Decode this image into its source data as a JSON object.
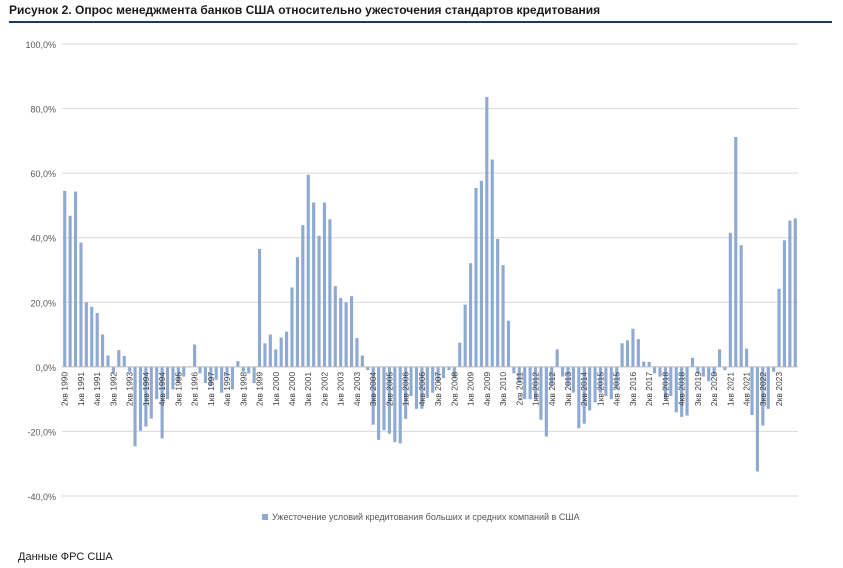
{
  "figure": {
    "title": "Рисунок 2. Опрос менеджмента банков США относительно ужесточения стандартов кредитования",
    "source": "Данные ФРС США"
  },
  "chart_data": {
    "type": "bar",
    "title": "",
    "xlabel": "",
    "ylabel": "",
    "ylim": [
      -40,
      100
    ],
    "y_ticks": [
      -40,
      -20,
      0,
      20,
      40,
      60,
      80,
      100
    ],
    "y_tick_labels": [
      "-40,0%",
      "-20,0%",
      "0,0%",
      "20,0%",
      "40,0%",
      "60,0%",
      "80,0%",
      "100,0%"
    ],
    "grid": true,
    "legend_position": "bottom",
    "bar_color": "#8eaad3",
    "series": [
      {
        "name": "Ужесточение условий кредитования больших и средних компаний в США",
        "values": [
          54.5,
          46.8,
          54.3,
          38.5,
          20.0,
          18.6,
          16.7,
          10.0,
          3.5,
          -2.0,
          5.2,
          3.4,
          -1.5,
          -24.6,
          -19.8,
          -18.5,
          -16.0,
          -10.0,
          -22.2,
          -10.0,
          -7.0,
          -5.0,
          -3.0,
          0.0,
          6.9,
          -2.0,
          -5.0,
          -6.0,
          -4.0,
          -8.0,
          -3.0,
          -7.0,
          1.8,
          -1.5,
          -2.0,
          -5.0,
          36.5,
          7.3,
          10.0,
          5.4,
          9.1,
          10.9,
          24.6,
          34.0,
          43.9,
          59.5,
          50.9,
          40.6,
          50.9,
          45.7,
          25.0,
          21.3,
          20.0,
          21.9,
          8.9,
          3.5,
          -1.0,
          -17.9,
          -22.6,
          -19.6,
          -20.7,
          -23.3,
          -23.7,
          -16.1,
          -9.0,
          -13.0,
          -13.0,
          -9.6,
          -8.0,
          -5.0,
          -3.5,
          -1.0,
          -3.6,
          7.5,
          19.3,
          32.1,
          55.4,
          57.6,
          83.6,
          64.2,
          39.6,
          31.5,
          14.3,
          -2.0,
          -5.0,
          -10.0,
          -10.0,
          -10.0,
          -16.4,
          -21.6,
          -6.0,
          5.4,
          -3.0,
          -6.0,
          -8.0,
          -19.0,
          -17.6,
          -13.5,
          -11.0,
          -8.0,
          -9.0,
          -10.0,
          -7.0,
          7.3,
          8.2,
          11.8,
          8.6,
          1.6,
          1.5,
          -2.0,
          -3.0,
          -10.0,
          -9.0,
          -14.1,
          -15.5,
          -15.1,
          2.8,
          -2.0,
          -3.0,
          -4.5,
          -3.0,
          5.4,
          -1.0,
          41.5,
          71.2,
          37.7,
          5.6,
          -14.9,
          -32.4,
          -18.2,
          -13.0,
          -1.5,
          24.2,
          39.2,
          45.3,
          46.0
        ],
        "ticks": [
          {
            "i": 0,
            "label": "2кв 1990"
          },
          {
            "i": 3,
            "label": "1кв 1991"
          },
          {
            "i": 6,
            "label": "4кв 1991"
          },
          {
            "i": 9,
            "label": "3кв 1992"
          },
          {
            "i": 12,
            "label": "2кв 1993"
          },
          {
            "i": 15,
            "label": "1кв 1994"
          },
          {
            "i": 18,
            "label": "4кв 1994"
          },
          {
            "i": 21,
            "label": "3кв 1995"
          },
          {
            "i": 24,
            "label": "2кв 1996"
          },
          {
            "i": 27,
            "label": "1кв 1997"
          },
          {
            "i": 30,
            "label": "4кв 1997"
          },
          {
            "i": 33,
            "label": "3кв 1998"
          },
          {
            "i": 36,
            "label": "2кв 1999"
          },
          {
            "i": 39,
            "label": "1кв 2000"
          },
          {
            "i": 42,
            "label": "4кв 2000"
          },
          {
            "i": 45,
            "label": "3кв 2001"
          },
          {
            "i": 48,
            "label": "2кв 2002"
          },
          {
            "i": 51,
            "label": "1кв 2003"
          },
          {
            "i": 54,
            "label": "4кв 2003"
          },
          {
            "i": 57,
            "label": "3кв 2004"
          },
          {
            "i": 60,
            "label": "2кв 2005"
          },
          {
            "i": 63,
            "label": "1кв 2006"
          },
          {
            "i": 66,
            "label": "4кв 2006"
          },
          {
            "i": 69,
            "label": "3кв 2007"
          },
          {
            "i": 72,
            "label": "2кв 2008"
          },
          {
            "i": 75,
            "label": "1кв 2009"
          },
          {
            "i": 78,
            "label": "4кв 2009"
          },
          {
            "i": 81,
            "label": "3кв 2010"
          },
          {
            "i": 84,
            "label": "2кв 2011"
          },
          {
            "i": 87,
            "label": "1кв 2012"
          },
          {
            "i": 90,
            "label": "4кв 2012"
          },
          {
            "i": 93,
            "label": "3кв 2013"
          },
          {
            "i": 96,
            "label": "2кв 2014"
          },
          {
            "i": 99,
            "label": "1кв 2015"
          },
          {
            "i": 102,
            "label": "4кв 2015"
          },
          {
            "i": 105,
            "label": "3кв 2016"
          },
          {
            "i": 108,
            "label": "2кв 2017"
          },
          {
            "i": 111,
            "label": "1кв 2018"
          },
          {
            "i": 114,
            "label": "4кв 2018"
          },
          {
            "i": 117,
            "label": "3кв 2019"
          },
          {
            "i": 120,
            "label": "2кв 2020"
          },
          {
            "i": 123,
            "label": "1кв 2021"
          },
          {
            "i": 126,
            "label": "4кв 2021"
          },
          {
            "i": 129,
            "label": "3кв 2022"
          },
          {
            "i": 132,
            "label": "2кв 2023"
          }
        ]
      }
    ]
  }
}
